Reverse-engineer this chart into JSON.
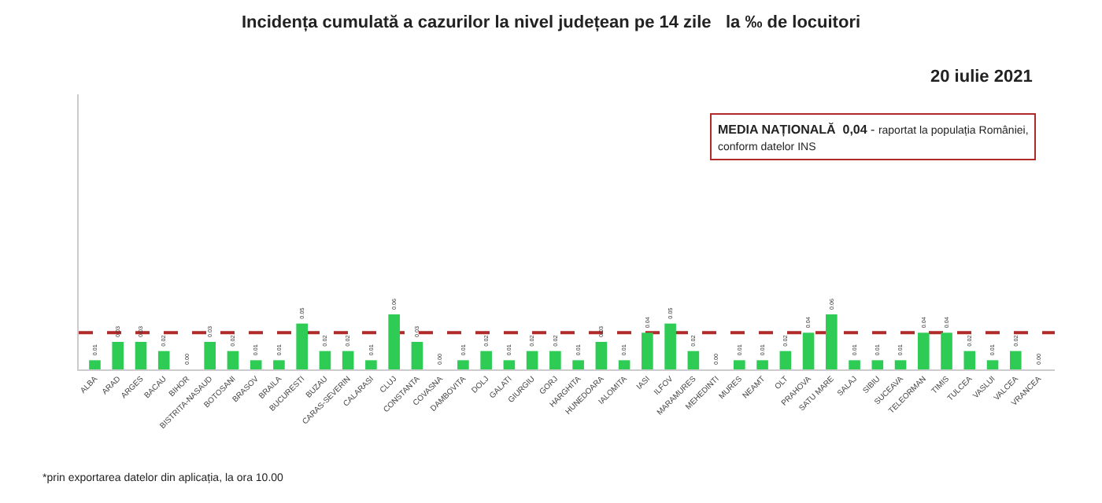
{
  "chart_data": {
    "type": "bar",
    "title": "Incidența cumulată a cazurilor la nivel județean pe 14 zile   la ‰ de locuitori",
    "subtitle": "20 iulie 2021",
    "categories": [
      "ALBA",
      "ARAD",
      "ARGES",
      "BACAU",
      "BIHOR",
      "BISTRITA-NASAUD",
      "BOTOSANI",
      "BRASOV",
      "BRAILA",
      "BUCURESTI",
      "BUZAU",
      "CARAS-SEVERIN",
      "CALARASI",
      "CLUJ",
      "CONSTANTA",
      "COVASNA",
      "DAMBOVITA",
      "DOLJ",
      "GALATI",
      "GIURGIU",
      "GORJ",
      "HARGHITA",
      "HUNEDOARA",
      "IALOMITA",
      "IASI",
      "ILFOV",
      "MARAMURES",
      "MEHEDINTI",
      "MURES",
      "NEAMT",
      "OLT",
      "PRAHOVA",
      "SATU MARE",
      "SALAJ",
      "SIBIU",
      "SUCEAVA",
      "TELEORMAN",
      "TIMIS",
      "TULCEA",
      "VASLUI",
      "VALCEA",
      "VRANCEA"
    ],
    "values": [
      0.01,
      0.03,
      0.03,
      0.02,
      0.0,
      0.03,
      0.02,
      0.01,
      0.01,
      0.05,
      0.02,
      0.02,
      0.01,
      0.06,
      0.03,
      0.0,
      0.01,
      0.02,
      0.01,
      0.02,
      0.02,
      0.01,
      0.03,
      0.01,
      0.04,
      0.05,
      0.02,
      0.0,
      0.01,
      0.01,
      0.02,
      0.04,
      0.06,
      0.01,
      0.01,
      0.01,
      0.04,
      0.04,
      0.02,
      0.01,
      0.02,
      0.0
    ],
    "color": "#2ecc55",
    "ylim": [
      0,
      0.3
    ],
    "value_labels": [
      "0.01",
      "0.03",
      "0.03",
      "0.02",
      "0.00",
      "0.03",
      "0.02",
      "0.01",
      "0.01",
      "0.05",
      "0.02",
      "0.02",
      "0.01",
      "0.06",
      "0.03",
      "0.00",
      "0.01",
      "0.02",
      "0.01",
      "0.02",
      "0.02",
      "0.01",
      "0.03",
      "0.01",
      "0.04",
      "0.05",
      "0.02",
      "0.00",
      "0.01",
      "0.01",
      "0.02",
      "0.04",
      "0.06",
      "0.01",
      "0.01",
      "0.01",
      "0.04",
      "0.04",
      "0.02",
      "0.01",
      "0.02",
      "0.00"
    ],
    "ref_lines": [
      {
        "axis": "y",
        "value": 0.04,
        "color": "#b02a2a",
        "line_style": "dashed"
      }
    ],
    "annotations": [
      "MEDIA NAȚIONALĂ  0,04 - raportat la populația României, conform datelor INS",
      "*prin exportarea datelor din aplicația, la ora 10.00"
    ]
  }
}
